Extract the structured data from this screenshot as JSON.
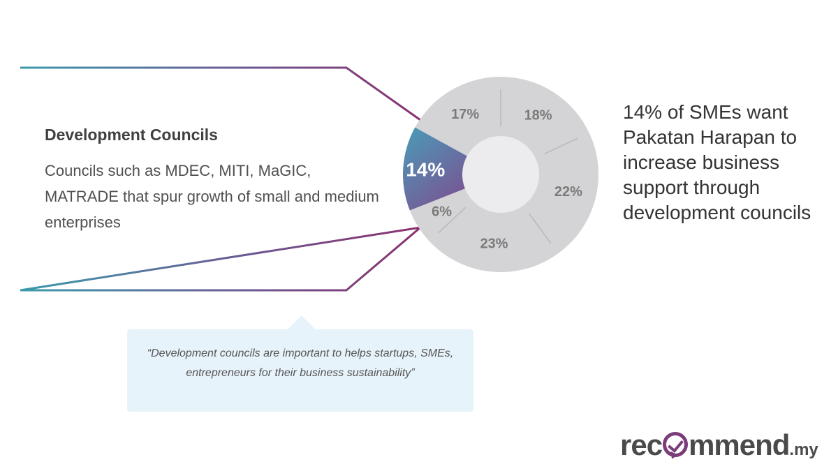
{
  "callout": {
    "title": "Development Councils",
    "description": "Councils such as MDEC, MITI, MaGIC, MATRADE that spur growth of small and medium enterprises"
  },
  "quote": {
    "text": "“Development councils are important to helps startups, SMEs, entrepreneurs for their business sustainability”"
  },
  "headline": {
    "text": "14% of SMEs want Pakatan Harapan to increase business support through development councils"
  },
  "logo": {
    "left": "rec",
    "right": "mmend",
    "suffix": ".my"
  },
  "colors": {
    "highlight_start": "#4a9cb8",
    "highlight_end": "#8a3a86",
    "slice_gray": "#d4d4d6",
    "center_circle": "#ececee",
    "divider": "#b8b8ba",
    "label_gray": "#7a7a7a",
    "callout_teal": "#3a9bab",
    "callout_purple": "#8a2f6e"
  },
  "chart_data": {
    "type": "pie",
    "variant": "donut",
    "start": "top",
    "direction": "clockwise",
    "slices": [
      {
        "label": "18%",
        "value": 18,
        "highlight": false
      },
      {
        "label": "22%",
        "value": 22,
        "highlight": false
      },
      {
        "label": "23%",
        "value": 23,
        "highlight": false
      },
      {
        "label": "6%",
        "value": 6,
        "highlight": false
      },
      {
        "label": "14%",
        "value": 14,
        "highlight": true
      },
      {
        "label": "17%",
        "value": 17,
        "highlight": false
      }
    ]
  }
}
